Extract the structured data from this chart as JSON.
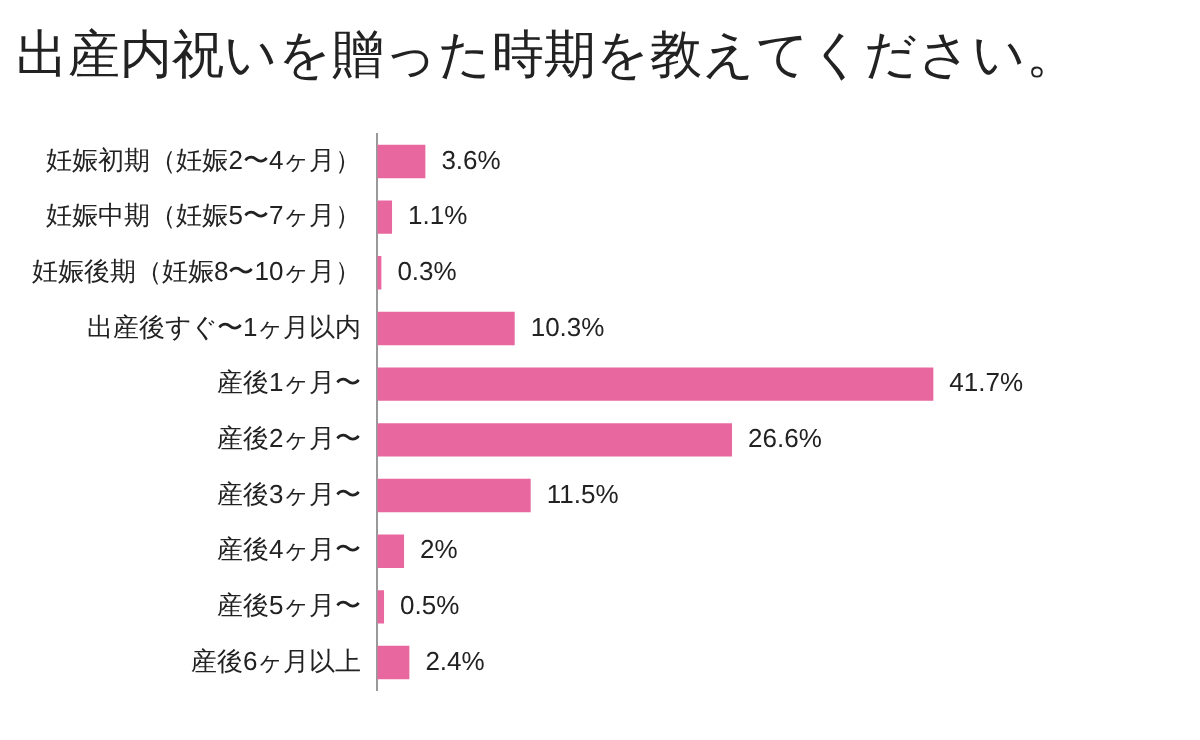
{
  "chart_data": {
    "type": "bar",
    "orientation": "horizontal",
    "title": "出産内祝いを贈った時期を教えてください。",
    "categories": [
      "妊娠初期（妊娠2〜4ヶ月）",
      "妊娠中期（妊娠5〜7ヶ月）",
      "妊娠後期（妊娠8〜10ヶ月）",
      "出産後すぐ〜1ヶ月以内",
      "産後1ヶ月〜",
      "産後2ヶ月〜",
      "産後3ヶ月〜",
      "産後4ヶ月〜",
      "産後5ヶ月〜",
      "産後6ヶ月以上"
    ],
    "values": [
      3.6,
      1.1,
      0.3,
      10.3,
      41.7,
      26.6,
      11.5,
      2,
      0.5,
      2.4
    ],
    "value_labels": [
      "3.6%",
      "1.1%",
      "0.3%",
      "10.3%",
      "41.7%",
      "26.6%",
      "11.5%",
      "2%",
      "0.5%",
      "2.4%"
    ],
    "color": "#e8679f",
    "grid": false,
    "legend": false,
    "tick_labels": "y"
  }
}
